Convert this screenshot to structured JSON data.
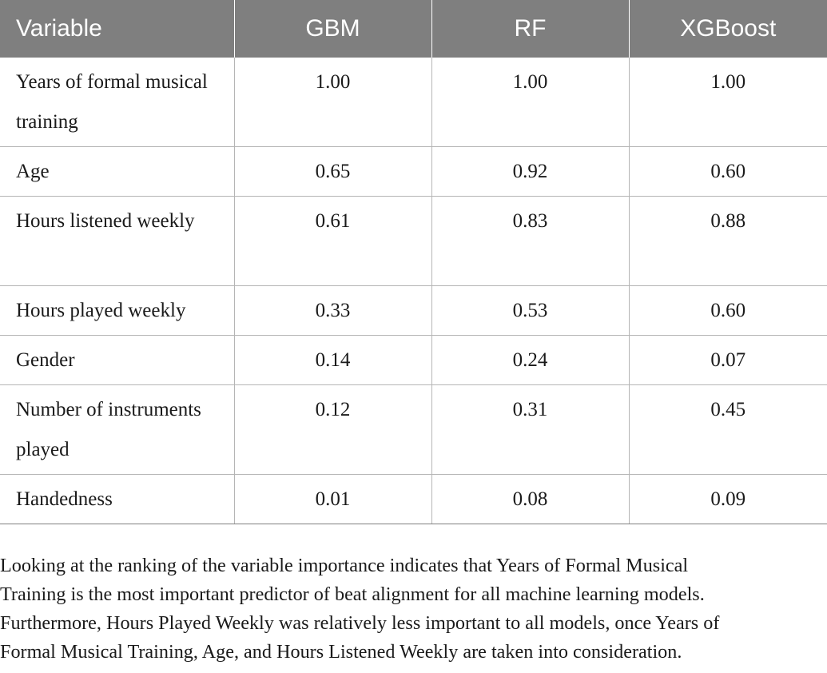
{
  "table": {
    "headers": [
      "Variable",
      "GBM",
      "RF",
      "XGBoost"
    ],
    "rows": [
      {
        "variable": "Years of formal musical training",
        "gbm": "1.00",
        "rf": "1.00",
        "xgboost": "1.00"
      },
      {
        "variable": "Age",
        "gbm": "0.65",
        "rf": "0.92",
        "xgboost": "0.60"
      },
      {
        "variable": "Hours listened weekly",
        "gbm": "0.61",
        "rf": "0.83",
        "xgboost": "0.88"
      },
      {
        "variable": "Hours played weekly",
        "gbm": "0.33",
        "rf": "0.53",
        "xgboost": "0.60"
      },
      {
        "variable": "Gender",
        "gbm": "0.14",
        "rf": "0.24",
        "xgboost": "0.07"
      },
      {
        "variable": "Number of instruments played",
        "gbm": "0.12",
        "rf": "0.31",
        "xgboost": "0.45"
      },
      {
        "variable": "Handedness",
        "gbm": "0.01",
        "rf": "0.08",
        "xgboost": "0.09"
      }
    ]
  },
  "note": {
    "lines": [
      "Looking at the ranking of the variable importance indicates that Years of Formal Musical",
      "Training is the most important predictor of beat alignment for all machine learning models.",
      "Furthermore, Hours Played Weekly was relatively less important to all models, once Years of",
      "Formal Musical Training, Age, and Hours Listened Weekly are taken into consideration."
    ]
  }
}
